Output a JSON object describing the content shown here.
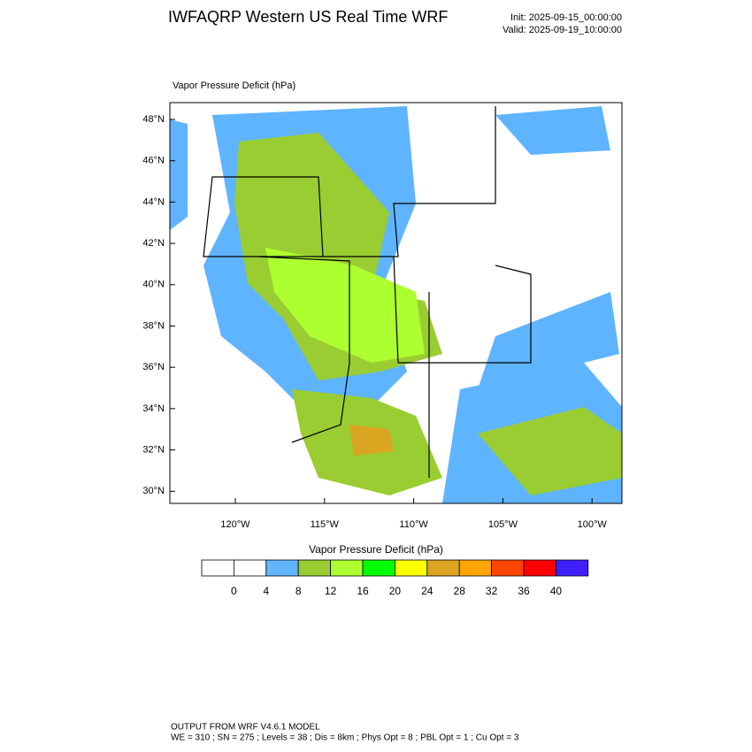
{
  "header": {
    "title": "IWFAQRP Western US Real Time WRF",
    "init": "Init: 2025-09-15_00:00:00",
    "valid": "Valid: 2025-09-19_10:00:00"
  },
  "map": {
    "title": "Vapor Pressure Deficit   (hPa)",
    "lat_labels": [
      "48°N",
      "46°N",
      "44°N",
      "42°N",
      "40°N",
      "38°N",
      "36°N",
      "34°N",
      "32°N",
      "30°N"
    ],
    "lon_labels": [
      "120°W",
      "115°W",
      "110°W",
      "105°W",
      "100°W"
    ]
  },
  "colorbar": {
    "title": "Vapor Pressure Deficit  (hPa)",
    "colors": [
      "#ffffff",
      "#ffffff",
      "#5fb4ff",
      "#9acd32",
      "#adff2f",
      "#00ff00",
      "#ffff00",
      "#daa520",
      "#ffa500",
      "#ff4500",
      "#ff0000",
      "#3f1fff"
    ],
    "ticks": [
      0,
      4,
      8,
      12,
      16,
      20,
      24,
      28,
      32,
      36,
      40
    ]
  },
  "footer": {
    "line1": "OUTPUT FROM WRF V4.6.1 MODEL",
    "line2": "WE = 310 ; SN = 275 ; Levels = 38 ; Dis = 8km ; Phys Opt = 8 ; PBL Opt = 1 ; Cu Opt = 3"
  }
}
